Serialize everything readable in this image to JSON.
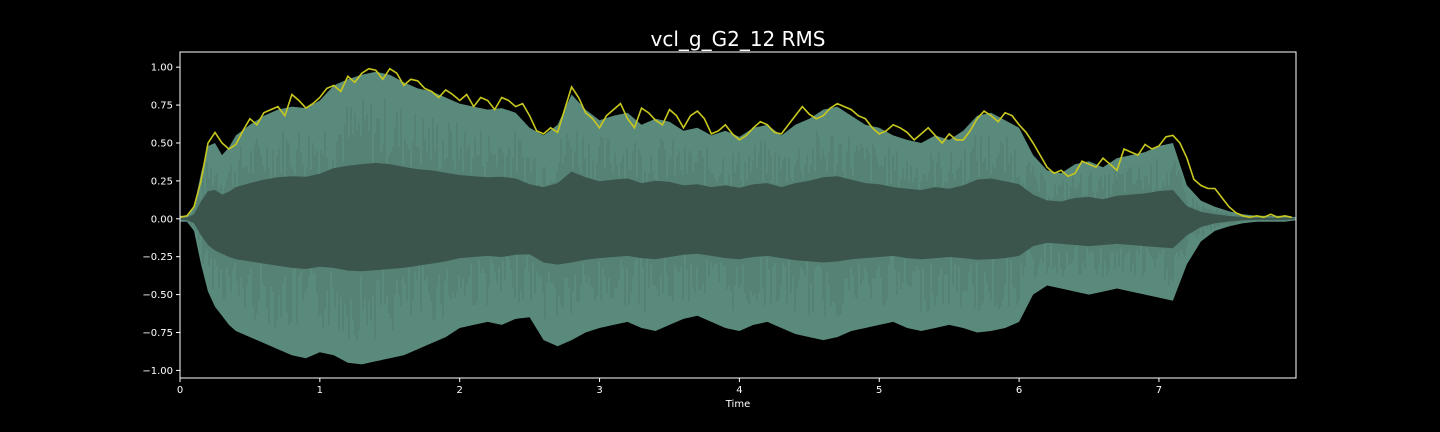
{
  "chart_data": {
    "type": "area",
    "title": "vcl_g_G2_12 RMS",
    "xlabel": "Time",
    "ylabel": "",
    "xlim": [
      0,
      7.98
    ],
    "ylim": [
      -1.05,
      1.1
    ],
    "x_ticks": [
      0,
      1,
      2,
      3,
      4,
      5,
      6,
      7
    ],
    "x_tick_labels": [
      "0",
      "1",
      "2",
      "3",
      "4",
      "5",
      "6",
      "7"
    ],
    "y_ticks": [
      1.0,
      0.75,
      0.5,
      0.25,
      0.0,
      -0.25,
      -0.5,
      -0.75,
      -1.0
    ],
    "y_tick_labels": [
      "1.00",
      "0.75",
      "0.50",
      "0.25",
      "0.00",
      "−0.25",
      "−0.50",
      "−0.75",
      "−1.00"
    ],
    "grid": false,
    "colors": {
      "background": "#000000",
      "frame": "#ffffff",
      "waveform_inner": "#3b554d",
      "waveform_outer": "#5a8a7c",
      "rms_line": "#c8c81e"
    },
    "series": [
      {
        "kind": "waveform",
        "x": [
          0.0,
          0.05,
          0.1,
          0.15,
          0.2,
          0.25,
          0.3,
          0.35,
          0.4,
          0.5,
          0.6,
          0.7,
          0.8,
          0.9,
          1.0,
          1.1,
          1.2,
          1.3,
          1.4,
          1.5,
          1.6,
          1.7,
          1.8,
          1.9,
          2.0,
          2.1,
          2.2,
          2.3,
          2.4,
          2.5,
          2.6,
          2.7,
          2.8,
          2.9,
          3.0,
          3.1,
          3.2,
          3.3,
          3.4,
          3.5,
          3.6,
          3.7,
          3.8,
          3.9,
          4.0,
          4.1,
          4.2,
          4.3,
          4.4,
          4.5,
          4.6,
          4.7,
          4.8,
          4.9,
          5.0,
          5.1,
          5.2,
          5.3,
          5.4,
          5.5,
          5.6,
          5.7,
          5.8,
          5.9,
          6.0,
          6.1,
          6.2,
          6.3,
          6.4,
          6.5,
          6.6,
          6.7,
          6.8,
          6.9,
          7.0,
          7.1,
          7.2,
          7.3,
          7.4,
          7.5,
          7.6,
          7.7,
          7.8,
          7.9,
          7.98
        ],
        "max": [
          0.02,
          0.02,
          0.08,
          0.3,
          0.48,
          0.5,
          0.42,
          0.47,
          0.55,
          0.62,
          0.68,
          0.72,
          0.74,
          0.73,
          0.78,
          0.88,
          0.92,
          0.95,
          0.97,
          0.95,
          0.9,
          0.86,
          0.84,
          0.8,
          0.76,
          0.74,
          0.72,
          0.73,
          0.7,
          0.6,
          0.55,
          0.62,
          0.82,
          0.72,
          0.65,
          0.68,
          0.7,
          0.62,
          0.66,
          0.64,
          0.58,
          0.6,
          0.55,
          0.58,
          0.54,
          0.6,
          0.62,
          0.55,
          0.62,
          0.66,
          0.72,
          0.74,
          0.68,
          0.62,
          0.6,
          0.55,
          0.52,
          0.5,
          0.55,
          0.52,
          0.58,
          0.68,
          0.7,
          0.65,
          0.6,
          0.42,
          0.32,
          0.3,
          0.36,
          0.38,
          0.34,
          0.4,
          0.42,
          0.44,
          0.48,
          0.5,
          0.22,
          0.12,
          0.08,
          0.05,
          0.03,
          0.02,
          0.02,
          0.02,
          0.01
        ],
        "min": [
          -0.02,
          -0.02,
          -0.08,
          -0.3,
          -0.48,
          -0.58,
          -0.64,
          -0.7,
          -0.74,
          -0.78,
          -0.82,
          -0.86,
          -0.9,
          -0.92,
          -0.88,
          -0.9,
          -0.95,
          -0.96,
          -0.94,
          -0.92,
          -0.9,
          -0.86,
          -0.82,
          -0.78,
          -0.72,
          -0.7,
          -0.68,
          -0.7,
          -0.66,
          -0.65,
          -0.8,
          -0.84,
          -0.8,
          -0.75,
          -0.72,
          -0.7,
          -0.68,
          -0.72,
          -0.74,
          -0.7,
          -0.66,
          -0.64,
          -0.68,
          -0.72,
          -0.74,
          -0.7,
          -0.68,
          -0.72,
          -0.76,
          -0.78,
          -0.8,
          -0.78,
          -0.74,
          -0.72,
          -0.7,
          -0.68,
          -0.72,
          -0.74,
          -0.72,
          -0.7,
          -0.72,
          -0.75,
          -0.74,
          -0.72,
          -0.68,
          -0.5,
          -0.44,
          -0.46,
          -0.48,
          -0.5,
          -0.48,
          -0.46,
          -0.48,
          -0.5,
          -0.52,
          -0.54,
          -0.3,
          -0.15,
          -0.08,
          -0.05,
          -0.03,
          -0.02,
          -0.02,
          -0.02,
          -0.01
        ]
      },
      {
        "kind": "rms",
        "x": [
          0.0,
          0.05,
          0.1,
          0.15,
          0.2,
          0.25,
          0.3,
          0.35,
          0.4,
          0.45,
          0.5,
          0.55,
          0.6,
          0.65,
          0.7,
          0.75,
          0.8,
          0.85,
          0.9,
          0.95,
          1.0,
          1.05,
          1.1,
          1.15,
          1.2,
          1.25,
          1.3,
          1.35,
          1.4,
          1.45,
          1.5,
          1.55,
          1.6,
          1.65,
          1.7,
          1.75,
          1.8,
          1.85,
          1.9,
          1.95,
          2.0,
          2.05,
          2.1,
          2.15,
          2.2,
          2.25,
          2.3,
          2.35,
          2.4,
          2.45,
          2.5,
          2.55,
          2.6,
          2.65,
          2.7,
          2.75,
          2.8,
          2.85,
          2.9,
          2.95,
          3.0,
          3.05,
          3.1,
          3.15,
          3.2,
          3.25,
          3.3,
          3.35,
          3.4,
          3.45,
          3.5,
          3.55,
          3.6,
          3.65,
          3.7,
          3.75,
          3.8,
          3.85,
          3.9,
          3.95,
          4.0,
          4.05,
          4.1,
          4.15,
          4.2,
          4.25,
          4.3,
          4.35,
          4.4,
          4.45,
          4.5,
          4.55,
          4.6,
          4.65,
          4.7,
          4.75,
          4.8,
          4.85,
          4.9,
          4.95,
          5.0,
          5.05,
          5.1,
          5.15,
          5.2,
          5.25,
          5.3,
          5.35,
          5.4,
          5.45,
          5.5,
          5.55,
          5.6,
          5.65,
          5.7,
          5.75,
          5.8,
          5.85,
          5.9,
          5.95,
          6.0,
          6.05,
          6.1,
          6.15,
          6.2,
          6.25,
          6.3,
          6.35,
          6.4,
          6.45,
          6.5,
          6.55,
          6.6,
          6.65,
          6.7,
          6.75,
          6.8,
          6.85,
          6.9,
          6.95,
          7.0,
          7.05,
          7.1,
          7.15,
          7.2,
          7.25,
          7.3,
          7.35,
          7.4,
          7.45,
          7.5,
          7.55,
          7.6,
          7.65,
          7.7,
          7.75,
          7.8,
          7.85,
          7.9,
          7.95
        ],
        "values": [
          0.01,
          0.02,
          0.08,
          0.25,
          0.5,
          0.57,
          0.5,
          0.46,
          0.49,
          0.58,
          0.66,
          0.62,
          0.7,
          0.72,
          0.74,
          0.68,
          0.82,
          0.78,
          0.73,
          0.76,
          0.8,
          0.86,
          0.88,
          0.84,
          0.94,
          0.9,
          0.96,
          0.99,
          0.98,
          0.92,
          0.99,
          0.96,
          0.88,
          0.92,
          0.91,
          0.86,
          0.84,
          0.8,
          0.85,
          0.82,
          0.78,
          0.82,
          0.74,
          0.8,
          0.78,
          0.72,
          0.8,
          0.78,
          0.74,
          0.76,
          0.68,
          0.58,
          0.56,
          0.6,
          0.57,
          0.72,
          0.87,
          0.8,
          0.7,
          0.66,
          0.6,
          0.68,
          0.72,
          0.76,
          0.66,
          0.6,
          0.73,
          0.7,
          0.65,
          0.62,
          0.72,
          0.68,
          0.6,
          0.68,
          0.71,
          0.66,
          0.56,
          0.58,
          0.62,
          0.56,
          0.52,
          0.55,
          0.6,
          0.64,
          0.62,
          0.57,
          0.56,
          0.62,
          0.68,
          0.74,
          0.69,
          0.66,
          0.68,
          0.73,
          0.76,
          0.74,
          0.72,
          0.68,
          0.66,
          0.6,
          0.56,
          0.58,
          0.62,
          0.6,
          0.57,
          0.52,
          0.56,
          0.6,
          0.55,
          0.5,
          0.56,
          0.52,
          0.52,
          0.58,
          0.66,
          0.71,
          0.68,
          0.64,
          0.7,
          0.68,
          0.62,
          0.57,
          0.5,
          0.42,
          0.34,
          0.3,
          0.32,
          0.28,
          0.3,
          0.38,
          0.36,
          0.34,
          0.4,
          0.36,
          0.32,
          0.46,
          0.44,
          0.42,
          0.49,
          0.46,
          0.48,
          0.54,
          0.55,
          0.5,
          0.4,
          0.26,
          0.22,
          0.2,
          0.2,
          0.14,
          0.08,
          0.04,
          0.02,
          0.01,
          0.02,
          0.01,
          0.03,
          0.01,
          0.02,
          0.01
        ]
      }
    ]
  }
}
